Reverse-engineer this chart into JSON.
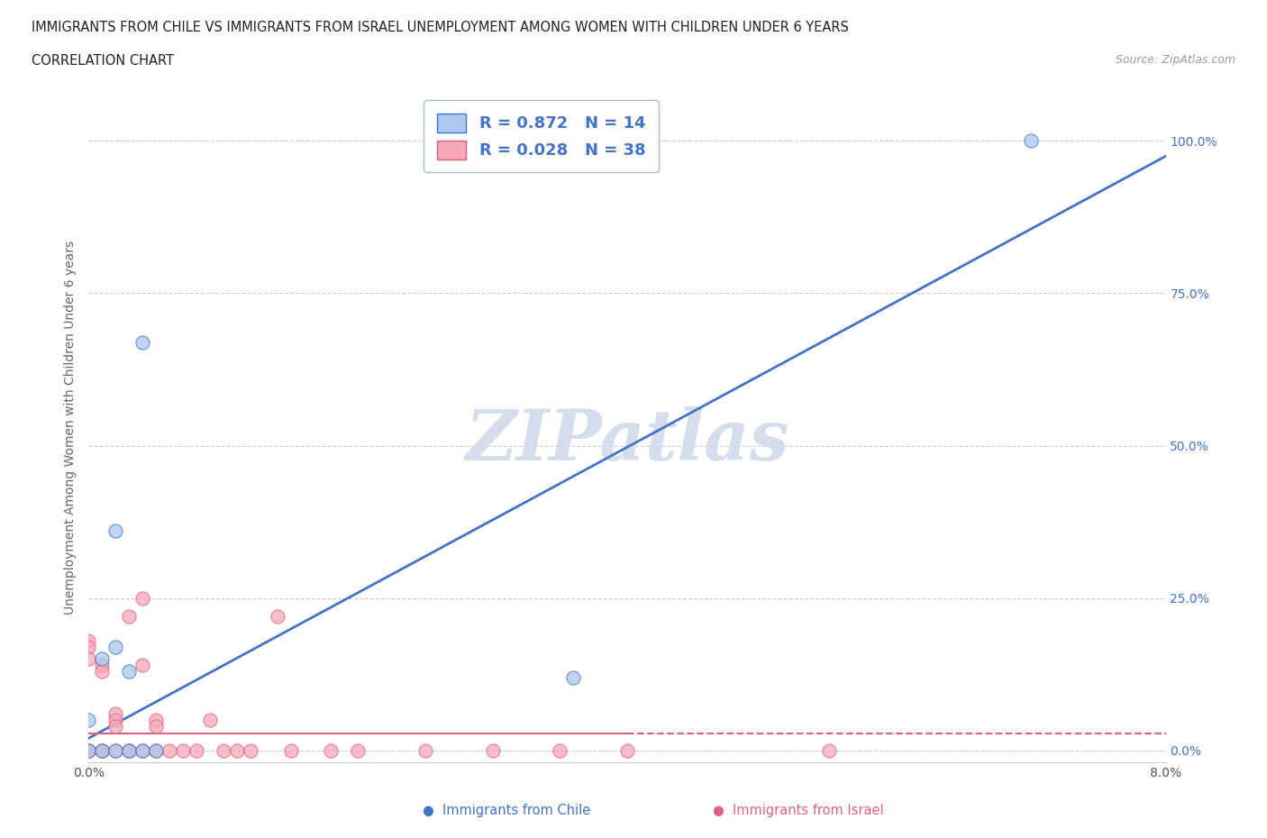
{
  "title_line1": "IMMIGRANTS FROM CHILE VS IMMIGRANTS FROM ISRAEL UNEMPLOYMENT AMONG WOMEN WITH CHILDREN UNDER 6 YEARS",
  "title_line2": "CORRELATION CHART",
  "source_text": "Source: ZipAtlas.com",
  "ylabel": "Unemployment Among Women with Children Under 6 years",
  "xlim": [
    0.0,
    0.08
  ],
  "ylim": [
    -0.02,
    1.08
  ],
  "yticks": [
    0.0,
    0.25,
    0.5,
    0.75,
    1.0
  ],
  "ytick_labels": [
    "0.0%",
    "25.0%",
    "50.0%",
    "75.0%",
    "100.0%"
  ],
  "xticks": [
    0.0,
    0.02,
    0.04,
    0.06,
    0.08
  ],
  "xtick_labels": [
    "0.0%",
    "",
    "",
    "",
    "8.0%"
  ],
  "chile_R": 0.872,
  "chile_N": 14,
  "israel_R": 0.028,
  "israel_N": 38,
  "chile_color": "#aac8f0",
  "israel_color": "#f5a8b8",
  "chile_line_color": "#4472c4",
  "israel_line_color": "#e06080",
  "legend_border_color": "#aab8d0",
  "watermark_color": "#d0daea",
  "background_color": "#ffffff",
  "chile_scatter_x": [
    0.0,
    0.0,
    0.001,
    0.001,
    0.002,
    0.002,
    0.002,
    0.003,
    0.003,
    0.004,
    0.004,
    0.005,
    0.036,
    0.07
  ],
  "chile_scatter_y": [
    0.0,
    0.05,
    0.0,
    0.15,
    0.0,
    0.17,
    0.36,
    0.0,
    0.13,
    0.0,
    0.67,
    0.0,
    0.12,
    1.0
  ],
  "israel_scatter_x": [
    0.0,
    0.0,
    0.0,
    0.0,
    0.0,
    0.001,
    0.001,
    0.001,
    0.001,
    0.002,
    0.002,
    0.002,
    0.002,
    0.003,
    0.003,
    0.003,
    0.004,
    0.004,
    0.004,
    0.005,
    0.005,
    0.005,
    0.006,
    0.007,
    0.008,
    0.009,
    0.01,
    0.011,
    0.012,
    0.014,
    0.015,
    0.018,
    0.02,
    0.025,
    0.03,
    0.035,
    0.04,
    0.055
  ],
  "israel_scatter_y": [
    0.0,
    0.0,
    0.18,
    0.17,
    0.15,
    0.0,
    0.0,
    0.14,
    0.13,
    0.0,
    0.06,
    0.05,
    0.04,
    0.0,
    0.0,
    0.22,
    0.0,
    0.25,
    0.14,
    0.0,
    0.05,
    0.04,
    0.0,
    0.0,
    0.0,
    0.05,
    0.0,
    0.0,
    0.0,
    0.22,
    0.0,
    0.0,
    0.0,
    0.0,
    0.0,
    0.0,
    0.0,
    0.0
  ],
  "chile_line_x0": 0.0,
  "chile_line_y0": 0.02,
  "chile_line_x1": 0.08,
  "chile_line_y1": 0.975,
  "israel_line_x0": 0.0,
  "israel_line_y0": 0.028,
  "israel_line_x1": 0.08,
  "israel_line_y1": 0.028
}
